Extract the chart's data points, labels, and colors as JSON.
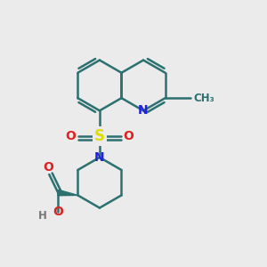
{
  "bg_color": "#ebebeb",
  "bond_color": "#2d7070",
  "n_color": "#2222dd",
  "s_color": "#dddd00",
  "o_color": "#dd2222",
  "h_color": "#777777",
  "line_width": 1.8,
  "xlim": [
    -1.4,
    1.8
  ],
  "ylim": [
    -1.8,
    2.6
  ]
}
